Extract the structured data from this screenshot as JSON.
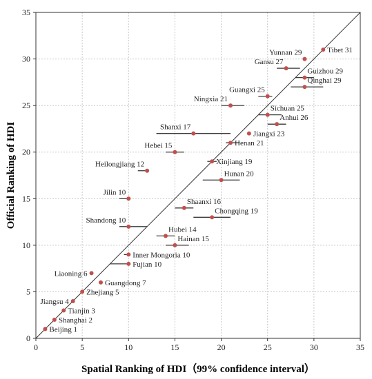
{
  "chart_data": {
    "type": "scatter",
    "xlabel": "Spatial Ranking of HDI（99% confidence interval）",
    "ylabel": "Official Ranking of HDI",
    "xlim": [
      0,
      35
    ],
    "ylim": [
      0,
      35
    ],
    "xticks": [
      0,
      5,
      10,
      15,
      20,
      25,
      30,
      35
    ],
    "yticks": [
      0,
      5,
      10,
      15,
      20,
      25,
      30,
      35
    ],
    "grid": true,
    "diagonal_line": true,
    "colors": {
      "point": "#c0504d",
      "ci_line": "#3a3a3a",
      "grid": "#c8c8c8",
      "frame": "#333333"
    },
    "points": [
      {
        "label": "Tibet 31",
        "x": 31,
        "y": 31,
        "ci": [
          31,
          31
        ],
        "anchor": "right"
      },
      {
        "label": "Yunnan 29",
        "x": 29,
        "y": 30,
        "ci": [
          29,
          29
        ],
        "anchor": "left-above"
      },
      {
        "label": "Gansu 27",
        "x": 27,
        "y": 29,
        "ci": [
          26,
          28.5
        ],
        "anchor": "left-above"
      },
      {
        "label": "Guizhou 29",
        "x": 29,
        "y": 28,
        "ci": [
          28,
          30
        ],
        "anchor": "right-above"
      },
      {
        "label": "Qinghai 29",
        "x": 29,
        "y": 27,
        "ci": [
          27.5,
          31
        ],
        "anchor": "right-above"
      },
      {
        "label": "Guangxi 25",
        "x": 25,
        "y": 26,
        "ci": [
          24,
          25.5
        ],
        "anchor": "left-above"
      },
      {
        "label": "Ningxia 21",
        "x": 21,
        "y": 25,
        "ci": [
          20,
          22.5
        ],
        "anchor": "left-above"
      },
      {
        "label": "Sichuan 25",
        "x": 25,
        "y": 24,
        "ci": [
          24,
          26.5
        ],
        "anchor": "right-above"
      },
      {
        "label": "Anhui 26",
        "x": 26,
        "y": 23,
        "ci": [
          25,
          27
        ],
        "anchor": "right-above"
      },
      {
        "label": "Jiangxi 23",
        "x": 23,
        "y": 22,
        "ci": [
          23,
          23
        ],
        "anchor": "right"
      },
      {
        "label": "Shanxi 17",
        "x": 17,
        "y": 22,
        "ci": [
          13,
          21
        ],
        "anchor": "left-above"
      },
      {
        "label": "Henan 21",
        "x": 21,
        "y": 21,
        "ci": [
          20.5,
          22
        ],
        "anchor": "right"
      },
      {
        "label": "Hebei 15",
        "x": 15,
        "y": 20,
        "ci": [
          14,
          16
        ],
        "anchor": "left-above"
      },
      {
        "label": "Xinjiang 19",
        "x": 19,
        "y": 19,
        "ci": [
          18.5,
          19.5
        ],
        "anchor": "right"
      },
      {
        "label": "Heilongjiang 12",
        "x": 12,
        "y": 18,
        "ci": [
          11,
          12
        ],
        "anchor": "left-above"
      },
      {
        "label": "Hunan 20",
        "x": 20,
        "y": 17,
        "ci": [
          18,
          22
        ],
        "anchor": "right-above"
      },
      {
        "label": "Jilin 10",
        "x": 10,
        "y": 15,
        "ci": [
          9,
          10
        ],
        "anchor": "left-above"
      },
      {
        "label": "Shaanxi 16",
        "x": 16,
        "y": 14,
        "ci": [
          15,
          17
        ],
        "anchor": "right-above"
      },
      {
        "label": "Chongqing 19",
        "x": 19,
        "y": 13,
        "ci": [
          17,
          21
        ],
        "anchor": "right-above"
      },
      {
        "label": "Shandong 10",
        "x": 10,
        "y": 12,
        "ci": [
          9,
          12
        ],
        "anchor": "left-above"
      },
      {
        "label": "Hubei 14",
        "x": 14,
        "y": 11,
        "ci": [
          13,
          15
        ],
        "anchor": "right-above"
      },
      {
        "label": "Hainan 15",
        "x": 15,
        "y": 10,
        "ci": [
          14,
          16.5
        ],
        "anchor": "right-above"
      },
      {
        "label": "Inner Mongoria 10",
        "x": 10,
        "y": 9,
        "ci": [
          9.5,
          10
        ],
        "anchor": "right"
      },
      {
        "label": "Fujian 10",
        "x": 10,
        "y": 8,
        "ci": [
          8,
          10
        ],
        "anchor": "right"
      },
      {
        "label": "Liaoning 6",
        "x": 6,
        "y": 7,
        "ci": [
          6,
          6
        ],
        "anchor": "left"
      },
      {
        "label": "Guangdong 7",
        "x": 7,
        "y": 6,
        "ci": [
          7,
          7
        ],
        "anchor": "right"
      },
      {
        "label": "Zhejiang 5",
        "x": 5,
        "y": 5,
        "ci": [
          5,
          5
        ],
        "anchor": "right"
      },
      {
        "label": "Jiangsu 4",
        "x": 4,
        "y": 4,
        "ci": [
          4,
          4
        ],
        "anchor": "left"
      },
      {
        "label": "Tianjin 3",
        "x": 3,
        "y": 3,
        "ci": [
          3,
          3
        ],
        "anchor": "right"
      },
      {
        "label": "Shanghai 2",
        "x": 2,
        "y": 2,
        "ci": [
          2,
          2
        ],
        "anchor": "right"
      },
      {
        "label": "Beijing 1",
        "x": 1,
        "y": 1,
        "ci": [
          1,
          1
        ],
        "anchor": "right"
      }
    ]
  }
}
